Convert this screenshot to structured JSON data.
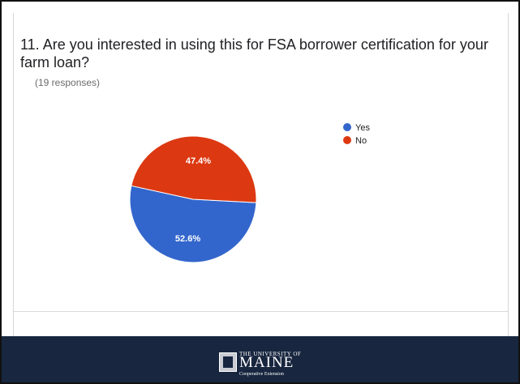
{
  "question": {
    "title": "11. Are you interested in using this for FSA borrower certification for your farm loan?",
    "responses": "(19 responses)"
  },
  "chart_data": {
    "type": "pie",
    "categories": [
      "Yes",
      "No"
    ],
    "values": [
      52.6,
      47.4
    ],
    "labels": [
      "52.6%",
      "47.4%"
    ],
    "colors": [
      "#3366cc",
      "#dc3912"
    ],
    "legend_placement": "right"
  },
  "footer": {
    "logo_text_top": "THE UNIVERSITY OF",
    "logo_text_main": "MAINE",
    "logo_text_bottom": "Cooperative Extension"
  }
}
